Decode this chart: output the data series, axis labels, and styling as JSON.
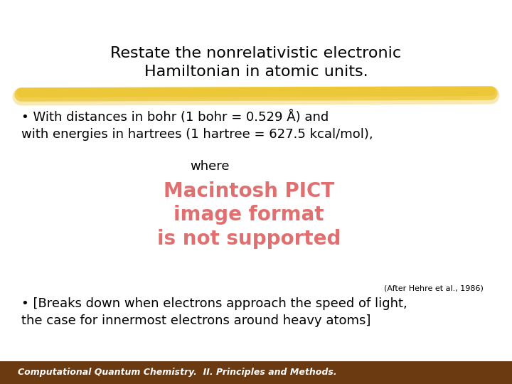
{
  "bg_color": "#ffffff",
  "title_line1": "Restate the nonrelativistic electronic",
  "title_line2": "Hamiltonian in atomic units.",
  "title_fontsize": 16,
  "title_color": "#000000",
  "highlight_color": "#E8B800",
  "highlight_alpha": 0.7,
  "bullet1_line1": "• With distances in bohr (1 bohr = 0.529 Å) and",
  "bullet1_line2": "with energies in hartrees (1 hartree = 627.5 kcal/mol),",
  "bullet1_fontsize": 13,
  "bullet1_color": "#000000",
  "where_text": "where",
  "where_fontsize": 13,
  "where_color": "#000000",
  "pict_line1": "Macintosh PICT",
  "pict_line2": "image format",
  "pict_line3": "is not supported",
  "pict_color": "#E07070",
  "pict_fontsize": 20,
  "citation_text": "(After Hehre et al., 1986)",
  "citation_fontsize": 8,
  "citation_color": "#000000",
  "bullet2_line1": "• [Breaks down when electrons approach the speed of light,",
  "bullet2_line2": "the case for innermost electrons around heavy atoms]",
  "bullet2_fontsize": 13,
  "bullet2_color": "#000000",
  "footer_text": "Computational Quantum Chemistry.  II. Principles and Methods.",
  "footer_fontsize": 9,
  "footer_bg": "#6B3A10",
  "footer_color": "#ffffff"
}
